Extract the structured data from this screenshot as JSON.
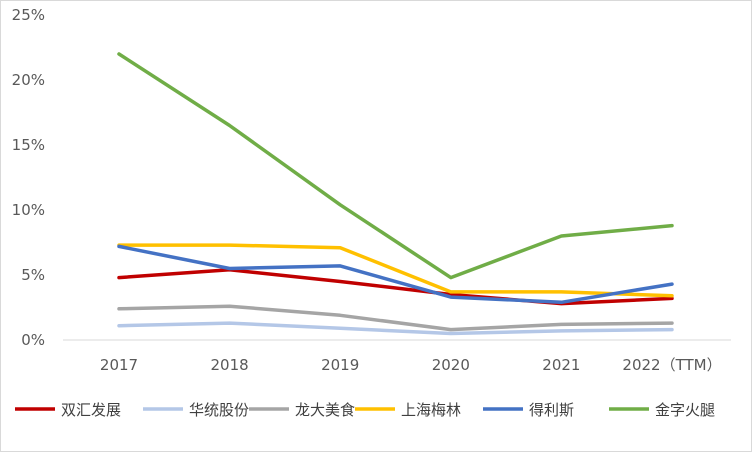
{
  "chart_data": {
    "type": "line",
    "title": "",
    "xlabel": "",
    "ylabel": "",
    "categories": [
      "2017",
      "2018",
      "2019",
      "2020",
      "2021",
      "2022（TTM）"
    ],
    "y_tick_labels": [
      "0%",
      "5%",
      "10%",
      "15%",
      "20%",
      "25%"
    ],
    "ylim": [
      0,
      25
    ],
    "y_unit": "%",
    "grid": false,
    "legend_position": "bottom",
    "series": [
      {
        "name": "双汇发展",
        "color": "#C00000",
        "values": [
          4.8,
          5.4,
          4.5,
          3.5,
          2.8,
          3.2
        ]
      },
      {
        "name": "华统股份",
        "color": "#B4C7E7",
        "values": [
          1.1,
          1.3,
          0.9,
          0.5,
          0.7,
          0.8
        ]
      },
      {
        "name": "龙大美食",
        "color": "#A5A5A5",
        "values": [
          2.4,
          2.6,
          1.9,
          0.8,
          1.2,
          1.3
        ]
      },
      {
        "name": "上海梅林",
        "color": "#FFC000",
        "values": [
          7.3,
          7.3,
          7.1,
          3.7,
          3.7,
          3.4
        ]
      },
      {
        "name": "得利斯",
        "color": "#4472C4",
        "values": [
          7.2,
          5.5,
          5.7,
          3.3,
          2.9,
          4.3
        ]
      },
      {
        "name": "金字火腿",
        "color": "#70AD47",
        "values": [
          22.0,
          16.5,
          10.4,
          4.8,
          8.0,
          8.8
        ]
      }
    ]
  }
}
